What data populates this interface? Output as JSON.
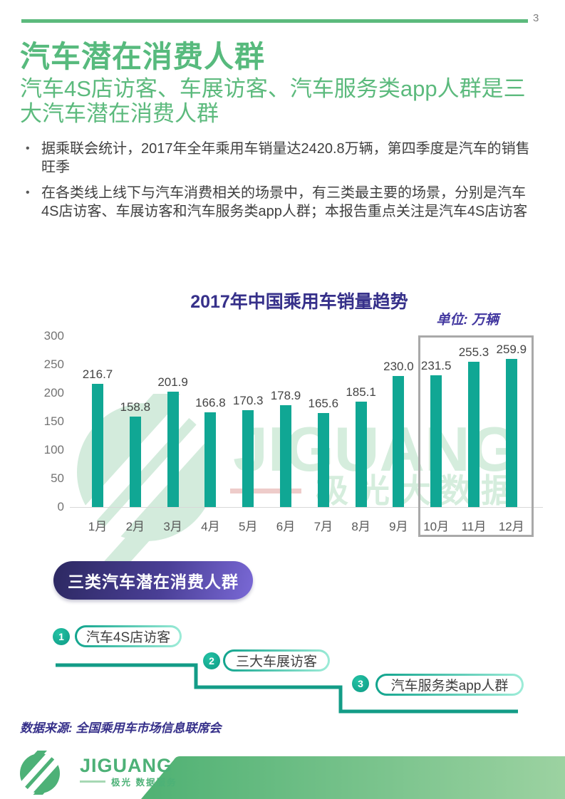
{
  "page": {
    "number": "3"
  },
  "header": {
    "title": "汽车潜在消费人群",
    "subtitle": "汽车4S店访客、车展访客、汽车服务类app人群是三大汽车潜在消费人群"
  },
  "bullets": [
    "据乘联会统计，2017年全年乘用车销量达2420.8万辆，第四季度是汽车的销售旺季",
    "在各类线上线下与汽车消费相关的场景中，有三类最主要的场景，分别是汽车4S店访客、车展访客和汽车服务类app人群；本报告重点关注是汽车4S店访客"
  ],
  "chart_data": {
    "type": "bar",
    "title": "2017年中国乘用车销量趋势",
    "unit_label": "单位: 万辆",
    "categories": [
      "1月",
      "2月",
      "3月",
      "4月",
      "5月",
      "6月",
      "7月",
      "8月",
      "9月",
      "10月",
      "11月",
      "12月"
    ],
    "values": [
      216.7,
      158.8,
      201.9,
      166.8,
      170.3,
      178.9,
      165.6,
      185.1,
      230.0,
      231.5,
      255.3,
      259.9
    ],
    "value_labels": [
      "216.7",
      "158.8",
      "201.9",
      "166.8",
      "170.3",
      "178.9",
      "165.6",
      "185.1",
      "230.0",
      "231.5",
      "255.3",
      "259.9"
    ],
    "yticks": [
      300,
      250,
      200,
      150,
      100,
      50,
      0
    ],
    "ylim": [
      0,
      300
    ],
    "grid": false,
    "legend": "none",
    "highlighted_categories": [
      "10月",
      "11月",
      "12月"
    ],
    "bar_color": "#10A794"
  },
  "section_badge": {
    "label": "三类汽车潜在消费人群"
  },
  "steps": {
    "items": [
      {
        "num": "1",
        "label": "汽车4S店访客"
      },
      {
        "num": "2",
        "label": "三大车展访客"
      },
      {
        "num": "3",
        "label": "汽车服务类app人群"
      }
    ]
  },
  "footnote": "数据来源: 全国乘用车市场信息联席会",
  "watermark": {
    "brand": "JIGUANG",
    "text": "极光大数据"
  },
  "footer": {
    "brand": "JIGUANG",
    "tagline": "极光 数据服务"
  },
  "colors": {
    "accent_green": "#5CBA7D",
    "bar_teal": "#10A794",
    "title_purple": "#36308A",
    "unit_purple": "#4338A0",
    "step_teal": "#139C87",
    "highlight_border": "#A9A9A9",
    "badge_gradient": [
      "#2C2861",
      "#7A69D6"
    ],
    "band_gradient": [
      "#4FB173",
      "#9CD2A1"
    ],
    "logo_green": "#4DB177"
  }
}
